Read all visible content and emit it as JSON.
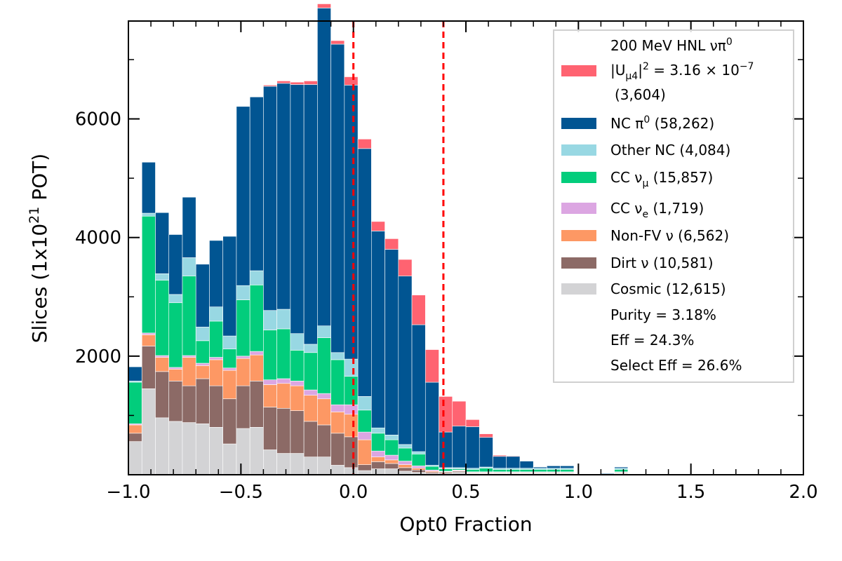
{
  "chart_data": {
    "type": "bar",
    "stacked": true,
    "xlabel": "Opt0 Fraction",
    "ylabel_parts": [
      "Slices (1x10",
      "21",
      " POT)"
    ],
    "xlim": [
      -1.0,
      2.0
    ],
    "ylim": [
      0,
      7650
    ],
    "xticks": [
      -1.0,
      -0.5,
      0.0,
      0.5,
      1.0,
      1.5,
      2.0
    ],
    "xtick_labels": [
      "−1.0",
      "−0.5",
      "0.0",
      "0.5",
      "1.0",
      "1.5",
      "2.0"
    ],
    "yticks": [
      2000,
      4000,
      6000
    ],
    "ytick_labels": [
      "2000",
      "4000",
      "6000"
    ],
    "grid": false,
    "legend_position": "top-right",
    "cut_lines": [
      0.0,
      0.4
    ],
    "cut_line_color": "#ff0000",
    "bin_edges_start": -1.0,
    "bin_width": 0.06,
    "series": [
      {
        "key": "cosmic",
        "color": "#d3d3d5",
        "values": [
          560,
          1450,
          960,
          900,
          880,
          860,
          800,
          520,
          780,
          800,
          420,
          360,
          360,
          300,
          300,
          160,
          120,
          70,
          100,
          100,
          60,
          40,
          20,
          20,
          40,
          20,
          20,
          20,
          20,
          20,
          20,
          20,
          20,
          0,
          0,
          0,
          20,
          0,
          0,
          0,
          0,
          0,
          0,
          0,
          0,
          0,
          0,
          0,
          0,
          0
        ]
      },
      {
        "key": "dirt",
        "color": "#8c6a66",
        "values": [
          140,
          720,
          780,
          680,
          620,
          760,
          700,
          760,
          720,
          780,
          720,
          760,
          720,
          600,
          540,
          540,
          520,
          100,
          120,
          90,
          60,
          40,
          20,
          20,
          20,
          10,
          10,
          10,
          10,
          10,
          10,
          10,
          10,
          0,
          0,
          0,
          10,
          0,
          0,
          0,
          0,
          0,
          0,
          0,
          0,
          0,
          0,
          0,
          0,
          0
        ]
      },
      {
        "key": "nonfv",
        "color": "#fd9864",
        "values": [
          140,
          190,
          240,
          200,
          480,
          220,
          440,
          480,
          460,
          440,
          380,
          420,
          420,
          440,
          440,
          360,
          380,
          420,
          80,
          60,
          50,
          30,
          20,
          10,
          10,
          10,
          10,
          10,
          10,
          10,
          10,
          10,
          10,
          0,
          0,
          0,
          10,
          0,
          0,
          0,
          0,
          0,
          0,
          0,
          0,
          0,
          0,
          0,
          0,
          0
        ]
      },
      {
        "key": "ccnue",
        "color": "#dca6e2",
        "values": [
          20,
          30,
          30,
          30,
          30,
          40,
          40,
          40,
          40,
          60,
          80,
          80,
          80,
          90,
          90,
          120,
          160,
          130,
          100,
          80,
          60,
          40,
          20,
          10,
          10,
          10,
          10,
          10,
          10,
          10,
          10,
          10,
          10,
          0,
          0,
          0,
          10,
          0,
          0,
          0,
          0,
          0,
          0,
          0,
          0,
          0,
          0,
          0,
          0,
          0
        ]
      },
      {
        "key": "ccnumu",
        "color": "#02cd7c",
        "values": [
          700,
          1970,
          1270,
          1090,
          1340,
          380,
          610,
          320,
          950,
          1120,
          840,
          840,
          520,
          630,
          940,
          760,
          480,
          370,
          300,
          260,
          220,
          200,
          60,
          40,
          20,
          40,
          60,
          40,
          40,
          40,
          40,
          40,
          40,
          0,
          0,
          0,
          40,
          0,
          0,
          0,
          0,
          0,
          0,
          0,
          0,
          0,
          0,
          0,
          0,
          0
        ]
      },
      {
        "key": "othernc",
        "color": "#98d8e3",
        "values": [
          20,
          50,
          110,
          140,
          310,
          230,
          240,
          220,
          240,
          240,
          330,
          330,
          280,
          140,
          200,
          120,
          290,
          230,
          90,
          80,
          60,
          40,
          20,
          20,
          20,
          20,
          20,
          20,
          20,
          20,
          20,
          20,
          20,
          0,
          0,
          0,
          20,
          0,
          0,
          0,
          0,
          0,
          0,
          0,
          0,
          0,
          0,
          0,
          0,
          0
        ]
      },
      {
        "key": "ncpi0",
        "color": "#015592",
        "values": [
          240,
          860,
          1030,
          1010,
          1020,
          1060,
          1120,
          1680,
          3020,
          2930,
          3780,
          3810,
          4200,
          4380,
          5360,
          5200,
          4620,
          4180,
          3320,
          3130,
          2840,
          2140,
          1400,
          600,
          700,
          700,
          500,
          200,
          200,
          120,
          20,
          40,
          40,
          10,
          10,
          20,
          20,
          10,
          10,
          10,
          10,
          10,
          10,
          10,
          10,
          10,
          10,
          10,
          10,
          0
        ]
      },
      {
        "key": "hnl",
        "color": "#ff6371",
        "values": [
          0,
          0,
          0,
          0,
          0,
          0,
          0,
          0,
          0,
          0,
          20,
          40,
          40,
          60,
          70,
          60,
          140,
          160,
          160,
          180,
          280,
          500,
          550,
          600,
          420,
          120,
          60,
          20,
          10,
          0,
          0,
          0,
          0,
          0,
          0,
          0,
          0,
          0,
          0,
          0,
          0,
          0,
          0,
          0,
          0,
          0,
          0,
          0,
          0,
          0
        ]
      }
    ]
  },
  "legend": {
    "hnl": {
      "line1": "200 MeV HNL νπ",
      "line1_sup": "0",
      "line2_pre": "|U",
      "line2_sub": "μ4",
      "line2_mid": "|",
      "line2_sup": "2",
      "line2_post": " = 3.16 × 10",
      "line2_exp": "−7",
      "line3": "(3,604)"
    },
    "ncpi0": {
      "pre": "NC π",
      "sup": "0",
      "post": " (58,262)"
    },
    "othernc": {
      "label": "Other NC (4,084)"
    },
    "ccnumu": {
      "pre": "CC ν",
      "sub": "μ",
      "post": " (15,857)"
    },
    "ccnue": {
      "pre": "CC ν",
      "sub": "e",
      "post": " (1,719)"
    },
    "nonfv": {
      "pre": "Non-FV ν",
      "post": " (6,562)"
    },
    "dirt": {
      "pre": "Dirt ν",
      "post": " (10,581)"
    },
    "cosmic": {
      "label": "Cosmic (12,615)"
    },
    "purity": "Purity = 3.18%",
    "eff": "Eff = 24.3%",
    "select_eff": "Select Eff = 26.6%"
  }
}
